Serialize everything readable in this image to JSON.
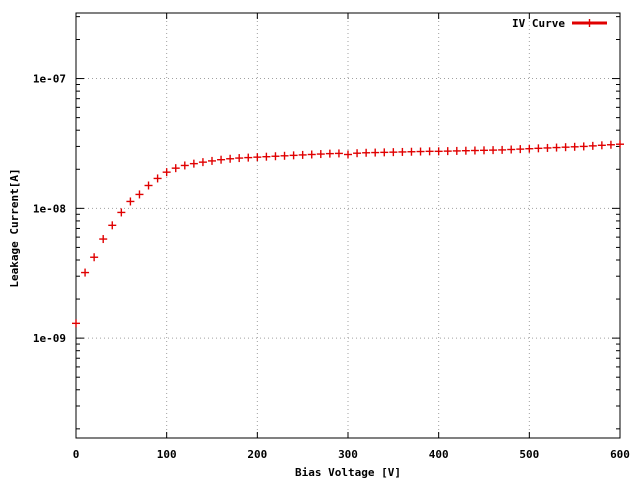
{
  "chart_data": {
    "type": "scatter",
    "title": "",
    "xlabel": "Bias Voltage [V]",
    "ylabel": "Leakage Current[A]",
    "xlim": [
      0,
      600
    ],
    "ylim": [
      1.7e-10,
      3.2e-07
    ],
    "y_scale": "log",
    "grid": true,
    "legend_position": "top-right",
    "x_ticks": [
      0,
      100,
      200,
      300,
      400,
      500,
      600
    ],
    "x_tick_labels": [
      "0",
      "100",
      "200",
      "300",
      "400",
      "500",
      "600"
    ],
    "y_ticks": [
      1e-09,
      1e-08,
      1e-07
    ],
    "y_tick_labels": [
      "1e-09",
      "1e-08",
      "1e-07"
    ],
    "series": [
      {
        "name": "IV Curve",
        "color": "#e00000",
        "marker": "plus",
        "x": [
          0,
          10,
          20,
          30,
          40,
          50,
          60,
          70,
          80,
          90,
          100,
          110,
          120,
          130,
          140,
          150,
          160,
          170,
          180,
          190,
          200,
          210,
          220,
          230,
          240,
          250,
          260,
          270,
          280,
          290,
          300,
          310,
          320,
          330,
          340,
          350,
          360,
          370,
          380,
          390,
          400,
          410,
          420,
          430,
          440,
          450,
          460,
          470,
          480,
          490,
          500,
          510,
          520,
          530,
          540,
          550,
          560,
          570,
          580,
          590,
          600
        ],
        "y": [
          1.3e-09,
          3.2e-09,
          4.2e-09,
          5.8e-09,
          7.4e-09,
          9.3e-09,
          1.13e-08,
          1.28e-08,
          1.5e-08,
          1.7e-08,
          1.9e-08,
          2.04e-08,
          2.14e-08,
          2.21e-08,
          2.27e-08,
          2.32e-08,
          2.37e-08,
          2.41e-08,
          2.44e-08,
          2.46e-08,
          2.48e-08,
          2.5e-08,
          2.52e-08,
          2.54e-08,
          2.56e-08,
          2.58e-08,
          2.6e-08,
          2.62e-08,
          2.64e-08,
          2.65e-08,
          2.6e-08,
          2.66e-08,
          2.68e-08,
          2.69e-08,
          2.7e-08,
          2.71e-08,
          2.72e-08,
          2.73e-08,
          2.74e-08,
          2.75e-08,
          2.75e-08,
          2.76e-08,
          2.77e-08,
          2.78e-08,
          2.79e-08,
          2.8e-08,
          2.81e-08,
          2.82e-08,
          2.84e-08,
          2.86e-08,
          2.88e-08,
          2.9e-08,
          2.92e-08,
          2.94e-08,
          2.96e-08,
          2.98e-08,
          3e-08,
          3.03e-08,
          3.06e-08,
          3.09e-08,
          3.12e-08
        ]
      }
    ]
  }
}
